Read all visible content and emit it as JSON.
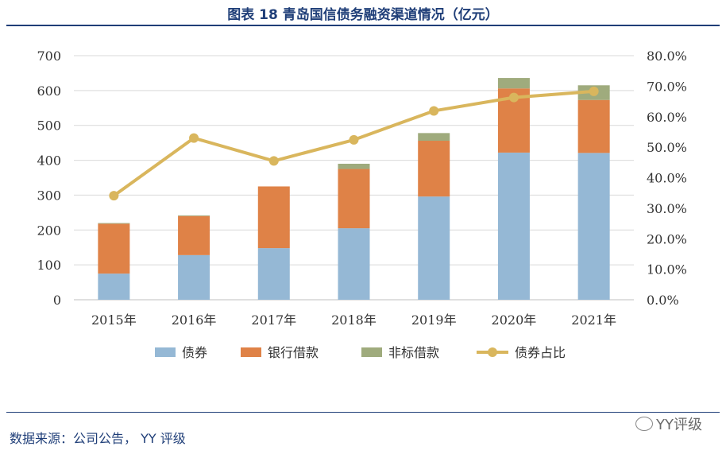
{
  "title": "图表 18 青岛国信债务融资渠道情况（亿元）",
  "source": "数据来源：公司公告， YY 评级",
  "watermark": "YY评级",
  "chart_data": {
    "type": "bar",
    "stacked": true,
    "categories": [
      "2015年",
      "2016年",
      "2017年",
      "2018年",
      "2019年",
      "2020年",
      "2021年"
    ],
    "series": [
      {
        "name": "债券",
        "kind": "bar",
        "color": "#95b8d5",
        "values": [
          75,
          128,
          148,
          205,
          296,
          422,
          421
        ]
      },
      {
        "name": "银行借款",
        "kind": "bar",
        "color": "#df8247",
        "values": [
          143,
          112,
          177,
          170,
          160,
          184,
          152
        ]
      },
      {
        "name": "非标借款",
        "kind": "bar",
        "color": "#9fab7d",
        "values": [
          2,
          2,
          0,
          15,
          22,
          30,
          42
        ]
      },
      {
        "name": "债券占比",
        "kind": "line",
        "axis": "right",
        "color": "#d9b65d",
        "values": [
          0.341,
          0.53,
          0.455,
          0.524,
          0.619,
          0.663,
          0.683
        ]
      }
    ],
    "y_left": {
      "min": 0,
      "max": 700,
      "ticks": [
        "0",
        "100",
        "200",
        "300",
        "400",
        "500",
        "600",
        "700"
      ]
    },
    "y_right": {
      "min": 0,
      "max": 0.8,
      "ticks": [
        "0.0%",
        "10.0%",
        "20.0%",
        "30.0%",
        "40.0%",
        "50.0%",
        "60.0%",
        "70.0%",
        "80.0%"
      ]
    },
    "grid": true,
    "legend_position": "bottom"
  }
}
